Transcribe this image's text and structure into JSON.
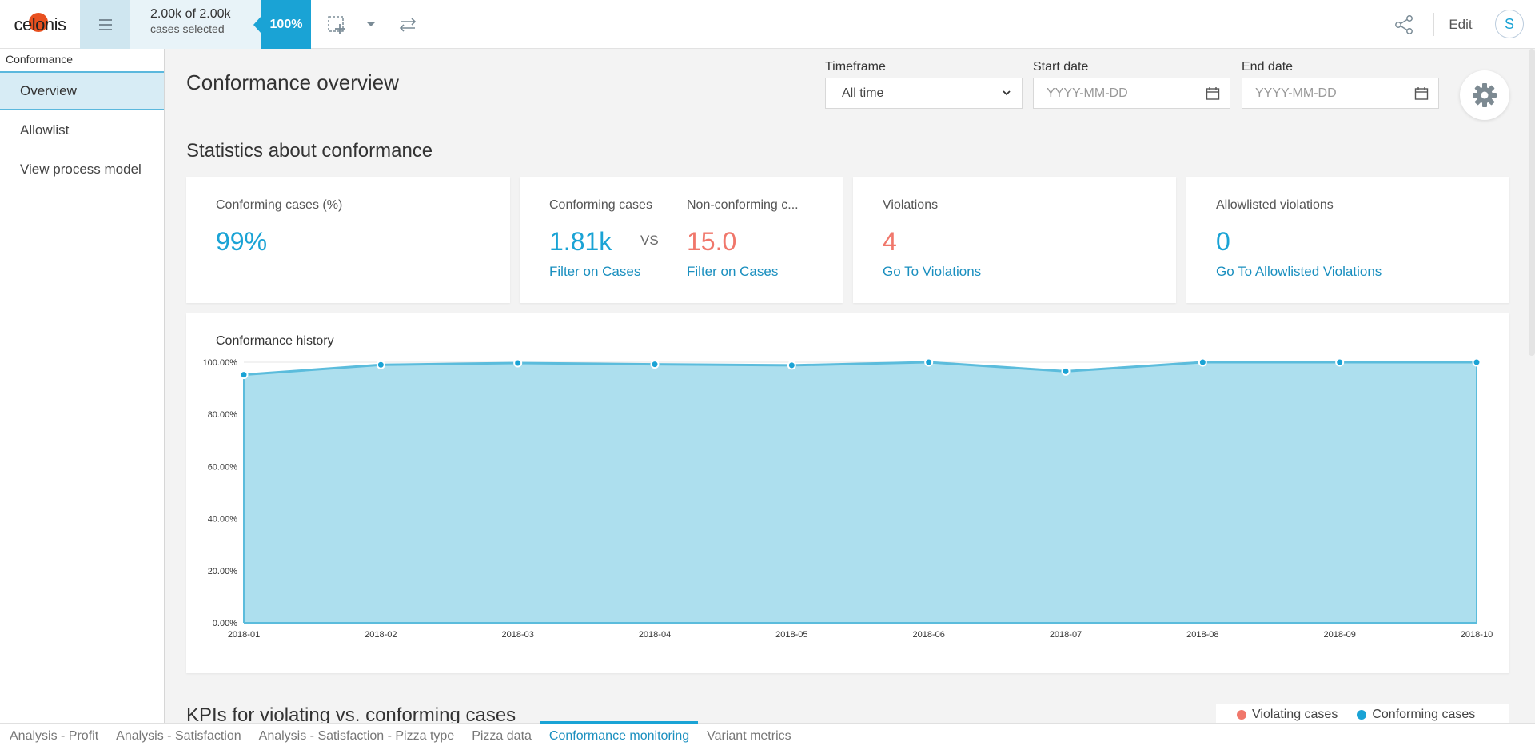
{
  "app": {
    "logo_text": "celonis",
    "brand_color": "#1aa3d5"
  },
  "topbar": {
    "selection_count": "2.00k of 2.00k",
    "selection_sub": "cases selected",
    "selection_percent": "100%",
    "edit_label": "Edit",
    "avatar_initial": "S"
  },
  "sidebar": {
    "header": "Conformance",
    "items": [
      {
        "label": "Overview",
        "active": true
      },
      {
        "label": "Allowlist"
      },
      {
        "label": "View process model"
      }
    ]
  },
  "page": {
    "title": "Conformance overview",
    "filters": {
      "timeframe_label": "Timeframe",
      "timeframe_value": "All time",
      "start_label": "Start date",
      "start_placeholder": "YYYY-MM-DD",
      "end_label": "End date",
      "end_placeholder": "YYYY-MM-DD"
    },
    "stats_title": "Statistics about conformance",
    "cards": {
      "conforming_pct": {
        "label": "Conforming cases (%)",
        "value": "99%"
      },
      "conforming": {
        "label": "Conforming cases",
        "value": "1.81k",
        "link": "Filter on Cases"
      },
      "vs": "VS",
      "nonconforming": {
        "label": "Non-conforming c...",
        "value": "15.0",
        "link": "Filter on Cases"
      },
      "violations": {
        "label": "Violations",
        "value": "4",
        "link": "Go To Violations"
      },
      "allowlisted": {
        "label": "Allowlisted violations",
        "value": "0",
        "link": "Go To Allowlisted Violations"
      }
    },
    "kpi_title": "KPIs for violating vs. conforming cases",
    "legend": {
      "violating": "Violating cases",
      "violating_color": "#f0776b",
      "conforming": "Conforming cases",
      "conforming_color": "#1aa3d5"
    }
  },
  "chart_data": {
    "type": "area",
    "title": "Conformance history",
    "xlabel": "",
    "ylabel": "",
    "x": [
      "2018-01",
      "2018-02",
      "2018-03",
      "2018-04",
      "2018-05",
      "2018-06",
      "2018-07",
      "2018-08",
      "2018-09",
      "2018-10"
    ],
    "series": [
      {
        "values": [
          95.2,
          99.0,
          99.7,
          99.2,
          98.8,
          100.0,
          96.5,
          100.0,
          100.0,
          100.0
        ]
      }
    ],
    "yticks": [
      "0.00%",
      "20.00%",
      "40.00%",
      "60.00%",
      "80.00%",
      "100.00%"
    ],
    "ylim": [
      0,
      100
    ],
    "grid": true,
    "line_color": "#5bbcdc",
    "fill_color": "#addfee"
  },
  "bottom_tabs": [
    {
      "label": "Analysis - Profit"
    },
    {
      "label": "Analysis - Satisfaction"
    },
    {
      "label": "Analysis - Satisfaction - Pizza type"
    },
    {
      "label": "Pizza data"
    },
    {
      "label": "Conformance monitoring",
      "active": true
    },
    {
      "label": "Variant metrics"
    }
  ]
}
